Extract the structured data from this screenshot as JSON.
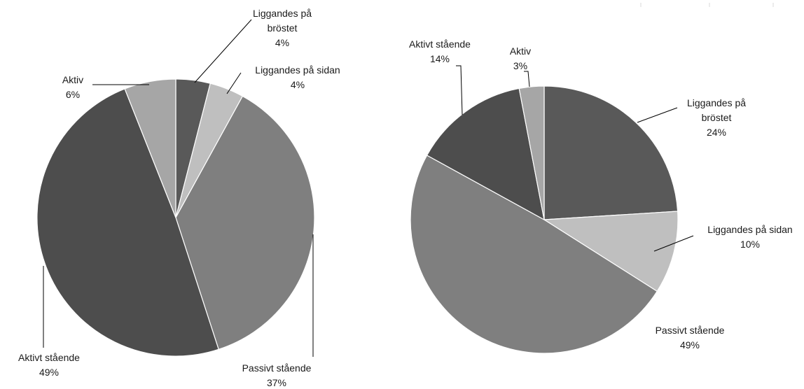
{
  "chart_data": [
    {
      "type": "pie",
      "slices": [
        {
          "label_lines": [
            "Liggandes på",
            "bröstet"
          ],
          "value": 4,
          "value_label": "4%",
          "color": "#595959"
        },
        {
          "label_lines": [
            "Liggandes på sidan"
          ],
          "value": 4,
          "value_label": "4%",
          "color": "#bfbfbf"
        },
        {
          "label_lines": [
            "Passivt stående"
          ],
          "value": 37,
          "value_label": "37%",
          "color": "#7f7f7f"
        },
        {
          "label_lines": [
            "Aktivt stående"
          ],
          "value": 49,
          "value_label": "49%",
          "color": "#4d4d4d"
        },
        {
          "label_lines": [
            "Aktiv"
          ],
          "value": 6,
          "value_label": "6%",
          "color": "#a6a6a6"
        }
      ]
    },
    {
      "type": "pie",
      "slices": [
        {
          "label_lines": [
            "Liggandes på",
            "bröstet"
          ],
          "value": 24,
          "value_label": "24%",
          "color": "#595959"
        },
        {
          "label_lines": [
            "Liggandes på sidan"
          ],
          "value": 10,
          "value_label": "10%",
          "color": "#bfbfbf"
        },
        {
          "label_lines": [
            "Passivt stående"
          ],
          "value": 49,
          "value_label": "49%",
          "color": "#7f7f7f"
        },
        {
          "label_lines": [
            "Aktivt stående"
          ],
          "value": 14,
          "value_label": "14%",
          "color": "#4d4d4d"
        },
        {
          "label_lines": [
            "Aktiv"
          ],
          "value": 3,
          "value_label": "3%",
          "color": "#a6a6a6"
        }
      ]
    }
  ]
}
